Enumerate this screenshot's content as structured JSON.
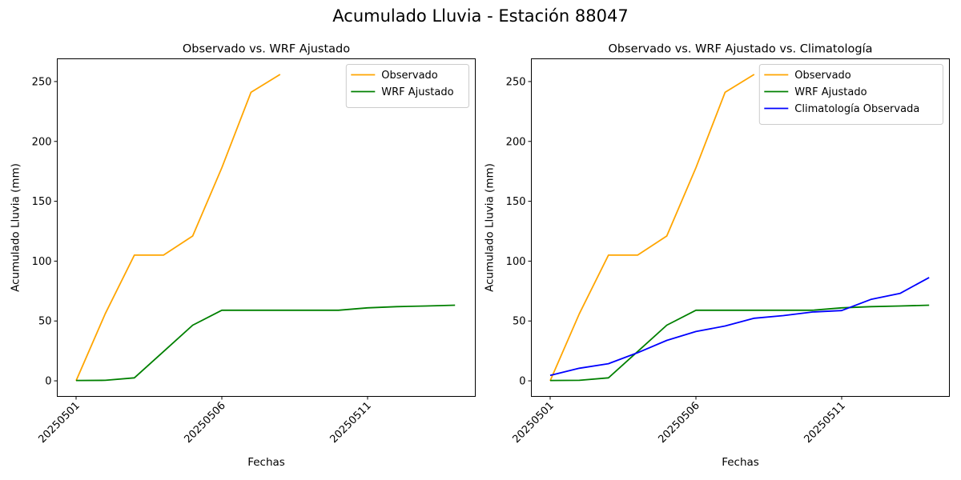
{
  "figure": {
    "suptitle": "Acumulado Lluvia - Estación 88047"
  },
  "colors": {
    "observado": "#ffa500",
    "wrf": "#008000",
    "climatologia": "#0000ff"
  },
  "chart_data": [
    {
      "type": "line",
      "title": "Observado vs. WRF Ajustado",
      "xlabel": "Fechas",
      "ylabel": "Acumulado Lluvia (mm)",
      "x_tick_labels": [
        "20250501",
        "20250506",
        "20250511"
      ],
      "y_ticks": [
        0,
        50,
        100,
        150,
        200,
        250
      ],
      "ylim": [
        -13,
        269
      ],
      "legend_position": "top-right",
      "x": [
        "20250501",
        "20250502",
        "20250503",
        "20250504",
        "20250505",
        "20250506",
        "20250507",
        "20250508",
        "20250509",
        "20250510",
        "20250511",
        "20250512",
        "20250513",
        "20250514"
      ],
      "series": [
        {
          "name": "Observado",
          "color": "#ffa500",
          "values": [
            0,
            56,
            105,
            105,
            121,
            178,
            241,
            256,
            null,
            null,
            null,
            null,
            null,
            null
          ]
        },
        {
          "name": "WRF Ajustado",
          "color": "#008000",
          "values": [
            0.3,
            0.4,
            2.5,
            24.5,
            46.5,
            59,
            59,
            59,
            59,
            59,
            61,
            62,
            62.5,
            63.2
          ]
        }
      ]
    },
    {
      "type": "line",
      "title": "Observado vs. WRF Ajustado vs. Climatología",
      "xlabel": "Fechas",
      "ylabel": "Acumulado Lluvia (mm)",
      "x_tick_labels": [
        "20250501",
        "20250506",
        "20250511"
      ],
      "y_ticks": [
        0,
        50,
        100,
        150,
        200,
        250
      ],
      "ylim": [
        -13,
        269
      ],
      "legend_position": "top-right",
      "x": [
        "20250501",
        "20250502",
        "20250503",
        "20250504",
        "20250505",
        "20250506",
        "20250507",
        "20250508",
        "20250509",
        "20250510",
        "20250511",
        "20250512",
        "20250513",
        "20250514"
      ],
      "series": [
        {
          "name": "Observado",
          "color": "#ffa500",
          "values": [
            0,
            56,
            105,
            105,
            121,
            178,
            241,
            256,
            null,
            null,
            null,
            null,
            null,
            null
          ]
        },
        {
          "name": "WRF Ajustado",
          "color": "#008000",
          "values": [
            0.3,
            0.4,
            2.5,
            24.5,
            46.5,
            59,
            59,
            59,
            59,
            59,
            61,
            62,
            62.5,
            63.2
          ]
        },
        {
          "name": "Climatología Observada",
          "color": "#0000ff",
          "values": [
            4.5,
            10.5,
            14.3,
            23.5,
            33.8,
            41.2,
            45.8,
            52.3,
            54.5,
            57.5,
            58.7,
            68,
            73,
            86.3
          ]
        }
      ]
    }
  ]
}
